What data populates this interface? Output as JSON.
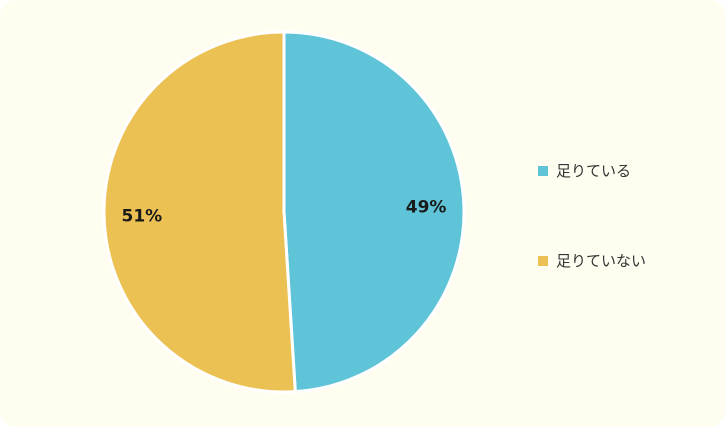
{
  "chart_data": {
    "type": "pie",
    "title": "",
    "categories": [
      "足りている",
      "足りていない"
    ],
    "values": [
      49,
      51
    ],
    "labels": [
      "49%",
      "51%"
    ],
    "colors": [
      "#5fc4d8",
      "#ecc153"
    ],
    "legend_position": "right"
  },
  "background_color": "#fffdf0"
}
